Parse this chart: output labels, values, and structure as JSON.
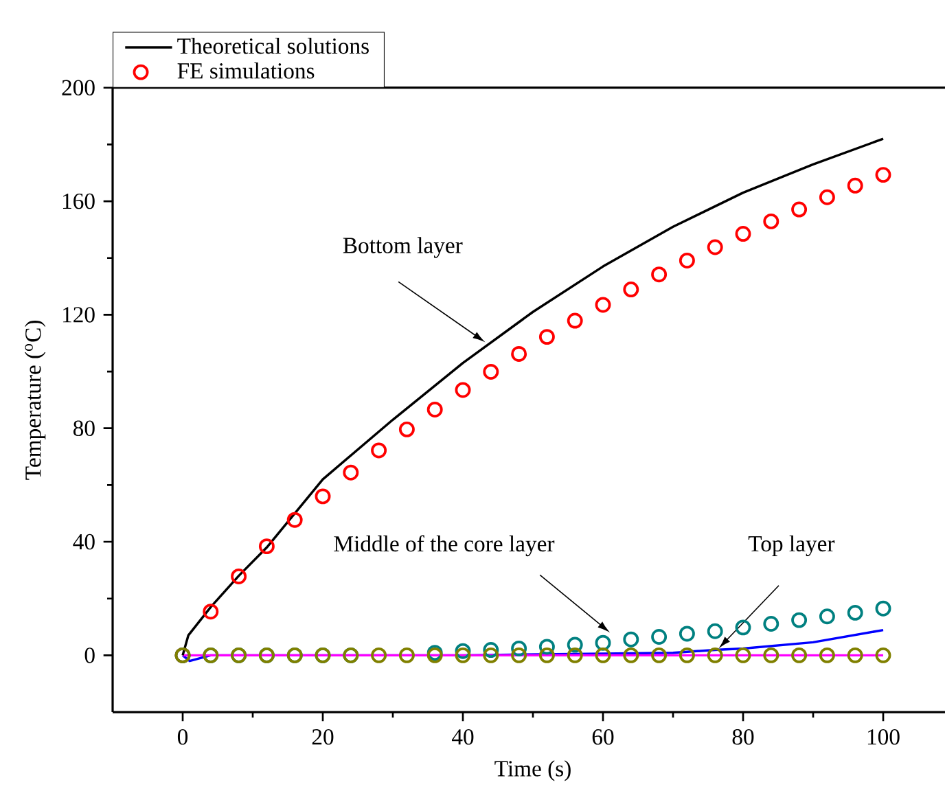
{
  "chart_data": {
    "type": "line",
    "xlabel": "Time (s)",
    "ylabel": "Temperature ($^{o}$C)",
    "xlim": [
      -10,
      110
    ],
    "ylim": [
      -20,
      200
    ],
    "xticks": [
      0,
      20,
      40,
      60,
      80,
      100
    ],
    "yticks": [
      0,
      40,
      80,
      120,
      160,
      200
    ],
    "legend": "top left",
    "series": [
      {
        "name": "Theoretical solutions",
        "color": "#000000",
        "marker": "none",
        "x": [
          0,
          0.8,
          4,
          8,
          12,
          20,
          30,
          40,
          50,
          60,
          70,
          80,
          90,
          100
        ],
        "values": [
          0,
          7,
          17,
          28,
          38,
          62,
          83,
          103,
          121,
          137,
          151,
          163,
          173,
          182
        ]
      },
      {
        "name": "FE simulations",
        "type": "scatter",
        "color": "#ff0000",
        "marker": "circle",
        "x": [
          0,
          4,
          8,
          12,
          16,
          20,
          24,
          28,
          32,
          36,
          40,
          44,
          48,
          52,
          56,
          60,
          64,
          68,
          72,
          76,
          80,
          84,
          88,
          92,
          96,
          100
        ],
        "values": [
          0,
          15.4,
          27.8,
          38.4,
          47.7,
          56,
          64.4,
          72.2,
          79.6,
          86.6,
          93.5,
          99.9,
          106.2,
          112.2,
          117.9,
          123.5,
          128.9,
          134.2,
          139.1,
          143.8,
          148.5,
          152.9,
          157.1,
          161.4,
          165.5,
          169.3
        ]
      },
      {
        "color": "#0000ff",
        "marker": "none",
        "x": [
          0,
          1,
          4,
          20,
          40,
          60,
          70,
          76,
          80,
          90,
          100
        ],
        "values": [
          0,
          -2,
          0,
          0,
          0,
          0.6,
          0.9,
          1.9,
          2.4,
          4.6,
          8.9
        ]
      },
      {
        "color": "#ff00ff",
        "marker": "none",
        "x": [
          0,
          100
        ],
        "values": [
          0,
          0
        ]
      },
      {
        "type": "scatter",
        "color": "#008080",
        "marker": "circle",
        "x": [
          0,
          4,
          8,
          12,
          16,
          20,
          24,
          28,
          32,
          36,
          40,
          44,
          48,
          52,
          56,
          60,
          64,
          68,
          72,
          76,
          80,
          84,
          88,
          92,
          96,
          100
        ],
        "values": [
          0,
          0,
          0,
          0,
          0,
          0,
          0,
          null,
          null,
          0.9,
          1.5,
          1.9,
          2.4,
          3,
          3.7,
          4.4,
          5.6,
          6.5,
          7.6,
          8.5,
          9.8,
          11.1,
          12.4,
          13.7,
          15,
          16.5
        ]
      },
      {
        "type": "scatter",
        "color": "#808000",
        "marker": "circle",
        "x": [
          0,
          4,
          8,
          12,
          16,
          20,
          24,
          28,
          32,
          36,
          40,
          44,
          48,
          52,
          56,
          60,
          64,
          68,
          72,
          76,
          80,
          84,
          88,
          92,
          96,
          100
        ],
        "values": [
          0,
          0,
          0,
          0,
          0,
          0,
          0,
          0,
          0,
          0,
          0,
          0,
          0,
          0,
          0,
          0,
          0,
          0,
          0,
          0,
          0,
          0,
          0,
          0,
          0,
          0
        ]
      }
    ],
    "annotations": [
      {
        "text": "Bottom layer",
        "x": 43.2,
        "y": 110.3
      },
      {
        "text": "Middle of the core layer",
        "x": 61,
        "y": 8
      },
      {
        "text": "Top layer",
        "x": 76.5,
        "y": 2.4
      }
    ]
  }
}
